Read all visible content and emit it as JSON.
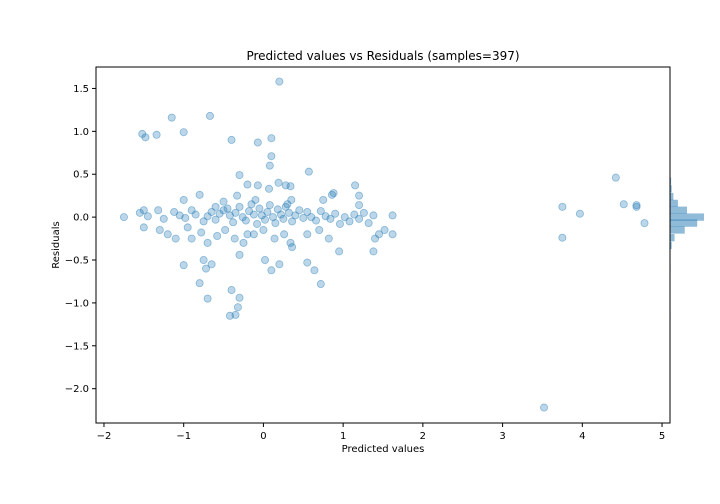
{
  "chart_data": {
    "type": "scatter",
    "title": "Predicted values vs Residuals (samples=397)",
    "xlabel": "Predicted values",
    "ylabel": "Residuals",
    "xlim": [
      -2.1,
      5.1
    ],
    "ylim": [
      -2.4,
      1.75
    ],
    "x_ticks": [
      "−2",
      "−1",
      "0",
      "1",
      "2",
      "3",
      "4",
      "5"
    ],
    "y_ticks": [
      "1.5",
      "1.0",
      "0.5",
      "0.0",
      "−0.5",
      "−1.0",
      "−1.5",
      "−2.0"
    ],
    "x_tick_values": [
      -2,
      -1,
      0,
      1,
      2,
      3,
      4,
      5
    ],
    "y_tick_values": [
      1.5,
      1.0,
      0.5,
      0.0,
      -0.5,
      -1.0,
      -1.5,
      -2.0
    ],
    "grid": false,
    "colors": {
      "points": "#1f77b4",
      "histogram": "#1f77b4"
    },
    "series": [
      {
        "values": [
          {
            "x": -1.75,
            "y": 0.0
          },
          {
            "x": -1.52,
            "y": 0.97
          },
          {
            "x": -1.48,
            "y": 0.93
          },
          {
            "x": -1.34,
            "y": 0.96
          },
          {
            "x": -1.15,
            "y": 1.16
          },
          {
            "x": -1.0,
            "y": 0.99
          },
          {
            "x": -0.67,
            "y": 1.18
          },
          {
            "x": -0.4,
            "y": 0.9
          },
          {
            "x": -0.07,
            "y": 0.87
          },
          {
            "x": 0.1,
            "y": 0.92
          },
          {
            "x": 0.2,
            "y": 1.58
          },
          {
            "x": 0.1,
            "y": 0.71
          },
          {
            "x": 0.08,
            "y": 0.6
          },
          {
            "x": 0.57,
            "y": 0.53
          },
          {
            "x": -0.3,
            "y": 0.49
          },
          {
            "x": 0.19,
            "y": 0.4
          },
          {
            "x": 0.28,
            "y": 0.37
          },
          {
            "x": 0.34,
            "y": 0.36
          },
          {
            "x": -0.2,
            "y": 0.38
          },
          {
            "x": -0.07,
            "y": 0.37
          },
          {
            "x": 1.15,
            "y": 0.37
          },
          {
            "x": 0.88,
            "y": 0.28
          },
          {
            "x": 0.86,
            "y": 0.26
          },
          {
            "x": -0.8,
            "y": 0.26
          },
          {
            "x": 1.2,
            "y": 0.25
          },
          {
            "x": -0.33,
            "y": 0.25
          },
          {
            "x": 0.07,
            "y": 0.33
          },
          {
            "x": -1.0,
            "y": 0.2
          },
          {
            "x": 0.75,
            "y": 0.2
          },
          {
            "x": 1.2,
            "y": 0.14
          },
          {
            "x": -1.55,
            "y": 0.05
          },
          {
            "x": -1.5,
            "y": 0.08
          },
          {
            "x": -1.45,
            "y": 0.01
          },
          {
            "x": -1.32,
            "y": 0.08
          },
          {
            "x": -1.25,
            "y": -0.02
          },
          {
            "x": -1.12,
            "y": 0.06
          },
          {
            "x": -1.05,
            "y": 0.02
          },
          {
            "x": -0.98,
            "y": -0.01
          },
          {
            "x": -0.9,
            "y": 0.08
          },
          {
            "x": -0.85,
            "y": 0.03
          },
          {
            "x": -0.75,
            "y": -0.05
          },
          {
            "x": -0.7,
            "y": 0.01
          },
          {
            "x": -0.65,
            "y": 0.06
          },
          {
            "x": -0.6,
            "y": -0.03
          },
          {
            "x": -0.55,
            "y": 0.04
          },
          {
            "x": -0.5,
            "y": 0.08
          },
          {
            "x": -0.45,
            "y": 0.1
          },
          {
            "x": -0.42,
            "y": 0.02
          },
          {
            "x": -0.38,
            "y": -0.06
          },
          {
            "x": -0.35,
            "y": 0.05
          },
          {
            "x": -0.3,
            "y": 0.12
          },
          {
            "x": -0.26,
            "y": 0.0
          },
          {
            "x": -0.22,
            "y": -0.04
          },
          {
            "x": -0.18,
            "y": 0.07
          },
          {
            "x": -0.15,
            "y": 0.15
          },
          {
            "x": -0.12,
            "y": 0.03
          },
          {
            "x": -0.08,
            "y": -0.08
          },
          {
            "x": -0.05,
            "y": 0.1
          },
          {
            "x": -0.02,
            "y": 0.02
          },
          {
            "x": 0.02,
            "y": -0.03
          },
          {
            "x": 0.05,
            "y": 0.06
          },
          {
            "x": 0.08,
            "y": 0.14
          },
          {
            "x": 0.12,
            "y": 0.0
          },
          {
            "x": 0.15,
            "y": -0.07
          },
          {
            "x": 0.18,
            "y": 0.09
          },
          {
            "x": 0.22,
            "y": 0.03
          },
          {
            "x": 0.25,
            "y": -0.02
          },
          {
            "x": 0.28,
            "y": 0.12
          },
          {
            "x": 0.32,
            "y": 0.05
          },
          {
            "x": 0.36,
            "y": -0.05
          },
          {
            "x": 0.4,
            "y": 0.02
          },
          {
            "x": 0.45,
            "y": 0.08
          },
          {
            "x": 0.5,
            "y": -0.01
          },
          {
            "x": 0.55,
            "y": 0.06
          },
          {
            "x": 0.6,
            "y": 0.0
          },
          {
            "x": 0.66,
            "y": -0.04
          },
          {
            "x": 0.72,
            "y": 0.07
          },
          {
            "x": 0.78,
            "y": 0.01
          },
          {
            "x": 0.84,
            "y": -0.02
          },
          {
            "x": 0.9,
            "y": 0.04
          },
          {
            "x": 0.96,
            "y": -0.08
          },
          {
            "x": 1.02,
            "y": 0.0
          },
          {
            "x": 1.08,
            "y": -0.05
          },
          {
            "x": 1.14,
            "y": 0.03
          },
          {
            "x": 1.2,
            "y": -0.02
          },
          {
            "x": 1.26,
            "y": 0.05
          },
          {
            "x": 1.32,
            "y": -0.07
          },
          {
            "x": 1.38,
            "y": 0.02
          },
          {
            "x": 1.45,
            "y": -0.2
          },
          {
            "x": 1.52,
            "y": -0.15
          },
          {
            "x": 1.62,
            "y": 0.02
          },
          {
            "x": 1.62,
            "y": -0.2
          },
          {
            "x": -1.5,
            "y": -0.12
          },
          {
            "x": -1.3,
            "y": -0.15
          },
          {
            "x": -1.2,
            "y": -0.2
          },
          {
            "x": -1.1,
            "y": -0.25
          },
          {
            "x": -0.95,
            "y": -0.12
          },
          {
            "x": -0.9,
            "y": -0.25
          },
          {
            "x": -0.78,
            "y": -0.18
          },
          {
            "x": -0.7,
            "y": -0.3
          },
          {
            "x": -0.58,
            "y": -0.22
          },
          {
            "x": -0.48,
            "y": -0.15
          },
          {
            "x": -0.36,
            "y": -0.25
          },
          {
            "x": -0.25,
            "y": -0.3
          },
          {
            "x": -0.12,
            "y": -0.2
          },
          {
            "x": 0.0,
            "y": -0.15
          },
          {
            "x": 0.14,
            "y": -0.25
          },
          {
            "x": 0.26,
            "y": -0.2
          },
          {
            "x": 0.34,
            "y": -0.3
          },
          {
            "x": 0.36,
            "y": -0.35
          },
          {
            "x": 0.55,
            "y": -0.2
          },
          {
            "x": 0.7,
            "y": -0.15
          },
          {
            "x": 0.82,
            "y": -0.25
          },
          {
            "x": 1.4,
            "y": -0.25
          },
          {
            "x": 1.38,
            "y": -0.4
          },
          {
            "x": 0.95,
            "y": -0.4
          },
          {
            "x": -1.0,
            "y": -0.56
          },
          {
            "x": -0.75,
            "y": -0.5
          },
          {
            "x": -0.65,
            "y": -0.55
          },
          {
            "x": -0.72,
            "y": -0.6
          },
          {
            "x": -0.3,
            "y": -0.44
          },
          {
            "x": 0.02,
            "y": -0.5
          },
          {
            "x": 0.1,
            "y": -0.62
          },
          {
            "x": 0.2,
            "y": -0.55
          },
          {
            "x": 0.55,
            "y": -0.53
          },
          {
            "x": 0.64,
            "y": -0.62
          },
          {
            "x": 0.72,
            "y": -0.78
          },
          {
            "x": -0.8,
            "y": -0.77
          },
          {
            "x": -0.7,
            "y": -0.95
          },
          {
            "x": -0.4,
            "y": -0.85
          },
          {
            "x": -0.3,
            "y": -0.94
          },
          {
            "x": -0.32,
            "y": -1.05
          },
          {
            "x": -0.42,
            "y": -1.15
          },
          {
            "x": -0.35,
            "y": -1.14
          },
          {
            "x": -0.2,
            "y": -0.2
          },
          {
            "x": -0.1,
            "y": 0.2
          },
          {
            "x": 0.3,
            "y": 0.15
          },
          {
            "x": 0.35,
            "y": 0.2
          },
          {
            "x": -0.5,
            "y": 0.18
          },
          {
            "x": -0.6,
            "y": 0.12
          },
          {
            "x": 3.52,
            "y": -2.22
          },
          {
            "x": 3.75,
            "y": 0.12
          },
          {
            "x": 3.75,
            "y": -0.24
          },
          {
            "x": 3.97,
            "y": 0.04
          },
          {
            "x": 4.42,
            "y": 0.46
          },
          {
            "x": 4.52,
            "y": 0.15
          },
          {
            "x": 4.68,
            "y": 0.14
          },
          {
            "x": 4.68,
            "y": 0.12
          },
          {
            "x": 4.78,
            "y": -0.07
          }
        ]
      }
    ],
    "marginal_histogram": {
      "orientation": "horizontal",
      "bins": [
        {
          "y": 0.42,
          "count": 2
        },
        {
          "y": 0.33,
          "count": 3
        },
        {
          "y": 0.24,
          "count": 6
        },
        {
          "y": 0.16,
          "count": 14
        },
        {
          "y": 0.08,
          "count": 30
        },
        {
          "y": 0.0,
          "count": 60
        },
        {
          "y": -0.07,
          "count": 48
        },
        {
          "y": -0.15,
          "count": 26
        },
        {
          "y": -0.24,
          "count": 8
        },
        {
          "y": -0.33,
          "count": 3
        },
        {
          "y": -0.6,
          "count": 1
        },
        {
          "y": -1.15,
          "count": 1
        }
      ]
    }
  }
}
